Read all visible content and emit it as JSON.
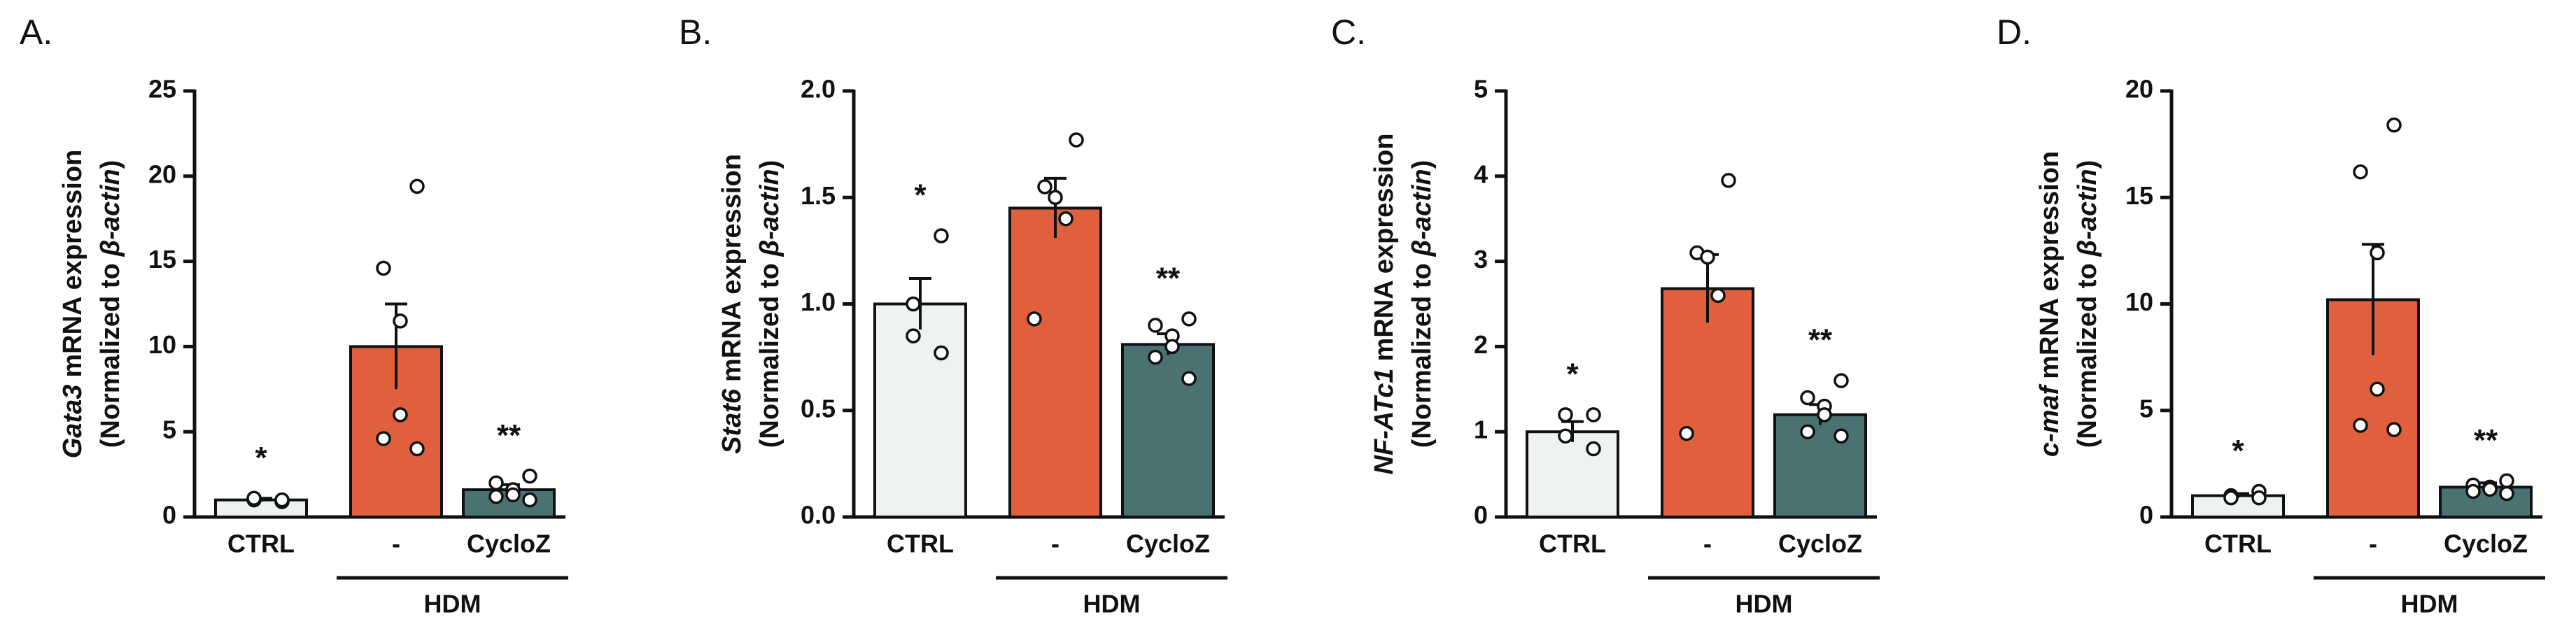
{
  "chart_data": [
    {
      "type": "bar",
      "panel": "A.",
      "ylabel": {
        "gene": "Gata3",
        "text": "mRNA expression",
        "norm": "(Normalized to",
        "ref": "β-actin",
        "close": ")"
      },
      "categories": [
        "CTRL",
        "-",
        "CycloZ"
      ],
      "group_label": "HDM",
      "values": [
        1.0,
        10.0,
        1.6
      ],
      "errors": [
        0.1,
        2.5,
        0.3
      ],
      "points": [
        [
          0.9,
          1.0,
          1.1,
          1.0
        ],
        [
          19.4,
          14.6,
          11.5,
          6.0,
          4.6,
          4.0
        ],
        [
          2.4,
          2.0,
          1.6,
          1.3,
          1.2,
          1.0
        ]
      ],
      "colors": [
        "#eef3f2",
        "#e0603e",
        "#4a7273"
      ],
      "annotations": [
        "*",
        null,
        "**"
      ],
      "ylim": [
        0,
        25
      ],
      "yticks": [
        0,
        5,
        10,
        15,
        20,
        25
      ]
    },
    {
      "type": "bar",
      "panel": "B.",
      "ylabel": {
        "gene": "Stat6",
        "text": "mRNA expression",
        "norm": "(Normalized to",
        "ref": "β-actin",
        "close": ")"
      },
      "categories": [
        "CTRL",
        "-",
        "CycloZ"
      ],
      "group_label": "HDM",
      "values": [
        1.0,
        1.45,
        0.81
      ],
      "errors": [
        0.12,
        0.14,
        0.05
      ],
      "points": [
        [
          1.32,
          1.0,
          0.85,
          0.77
        ],
        [
          1.77,
          1.55,
          1.5,
          1.4,
          0.93
        ],
        [
          0.93,
          0.9,
          0.85,
          0.8,
          0.75,
          0.65
        ]
      ],
      "colors": [
        "#eef3f2",
        "#e0603e",
        "#4a7273"
      ],
      "annotations": [
        "*",
        null,
        "**"
      ],
      "ylim": [
        0,
        2
      ],
      "yticks": [
        {
          "value": 0,
          "label": "0.0"
        },
        {
          "value": 0.5,
          "label": "0.5"
        },
        {
          "value": 1,
          "label": "1.0"
        },
        {
          "value": 1.5,
          "label": "1.5"
        },
        {
          "value": 2,
          "label": "2.0"
        }
      ]
    },
    {
      "type": "bar",
      "panel": "C.",
      "ylabel": {
        "gene": "NF-ATc1",
        "text": "mRNA expression",
        "norm": "(Normalized to",
        "ref": "β-actin",
        "close": ")"
      },
      "categories": [
        "CTRL",
        "-",
        "CycloZ"
      ],
      "group_label": "HDM",
      "values": [
        1.0,
        2.68,
        1.2
      ],
      "errors": [
        0.12,
        0.4,
        0.12
      ],
      "points": [
        [
          1.2,
          1.2,
          0.95,
          0.8
        ],
        [
          3.95,
          3.1,
          3.05,
          2.6,
          0.98
        ],
        [
          1.6,
          1.4,
          1.3,
          1.2,
          1.0,
          0.95
        ]
      ],
      "colors": [
        "#eef3f2",
        "#e0603e",
        "#4a7273"
      ],
      "annotations": [
        "*",
        null,
        "**"
      ],
      "ylim": [
        0,
        5
      ],
      "yticks": [
        0,
        1,
        2,
        3,
        4,
        5
      ]
    },
    {
      "type": "bar",
      "panel": "D.",
      "ylabel": {
        "gene": "c-maf",
        "text": "mRNA expression",
        "norm": "(Normalized to",
        "ref": "β-actin",
        "close": ")"
      },
      "categories": [
        "CTRL",
        "-",
        "CycloZ"
      ],
      "group_label": "HDM",
      "values": [
        1.0,
        10.2,
        1.4
      ],
      "errors": [
        0.1,
        2.6,
        0.2
      ],
      "points": [
        [
          1.2,
          1.0,
          0.9,
          0.9
        ],
        [
          18.4,
          16.2,
          12.4,
          6.0,
          4.3,
          4.1
        ],
        [
          1.7,
          1.5,
          1.4,
          1.3,
          1.2,
          1.1
        ]
      ],
      "colors": [
        "#eef3f2",
        "#e0603e",
        "#4a7273"
      ],
      "annotations": [
        "*",
        null,
        "**"
      ],
      "ylim": [
        0,
        20
      ],
      "yticks": [
        0,
        5,
        10,
        15,
        20
      ]
    }
  ]
}
